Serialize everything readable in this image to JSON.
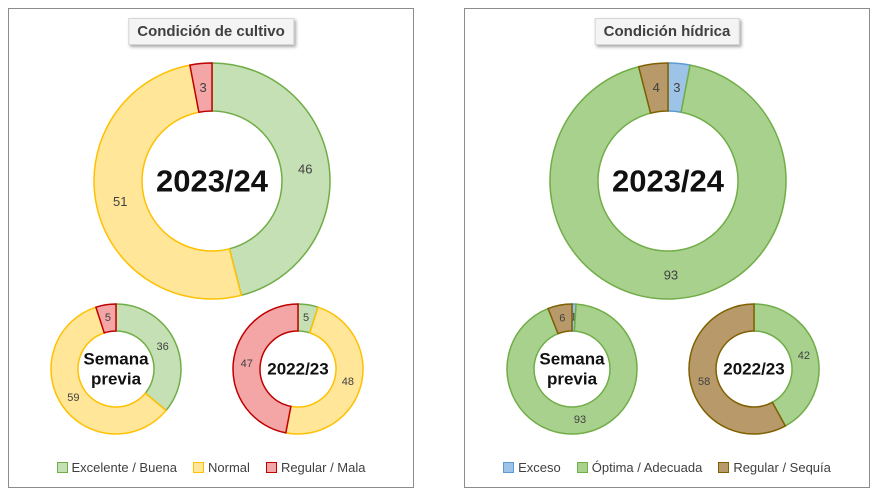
{
  "panels": [
    {
      "title": "Condición de cultivo",
      "legend": [
        {
          "label": "Excelente / Buena",
          "fill": "#c5e0b4",
          "stroke": "#70ad47"
        },
        {
          "label": "Normal",
          "fill": "#ffe699",
          "stroke": "#ffc000"
        },
        {
          "label": "Regular / Mala",
          "fill": "#f4a6a6",
          "stroke": "#c00000"
        }
      ]
    },
    {
      "title": "Condición hídrica",
      "legend": [
        {
          "label": "Exceso",
          "fill": "#9dc3e6",
          "stroke": "#5b9bd5"
        },
        {
          "label": "Óptima / Adecuada",
          "fill": "#a9d18e",
          "stroke": "#70ad47"
        },
        {
          "label": "Regular / Sequía",
          "fill": "#b89a6a",
          "stroke": "#7f6000"
        }
      ]
    }
  ],
  "chart_data": [
    {
      "type": "pie",
      "donut": true,
      "panel": 0,
      "center_label": [
        "2023/24"
      ],
      "categories": [
        "Excelente / Buena",
        "Normal",
        "Regular / Mala"
      ],
      "values": [
        46,
        51,
        3
      ]
    },
    {
      "type": "pie",
      "donut": true,
      "panel": 0,
      "center_label": [
        "Semana",
        "previa"
      ],
      "categories": [
        "Excelente / Buena",
        "Normal",
        "Regular / Mala"
      ],
      "values": [
        36,
        59,
        5
      ]
    },
    {
      "type": "pie",
      "donut": true,
      "panel": 0,
      "center_label": [
        "2022/23"
      ],
      "categories": [
        "Excelente / Buena",
        "Normal",
        "Regular / Mala"
      ],
      "values": [
        5,
        48,
        47
      ]
    },
    {
      "type": "pie",
      "donut": true,
      "panel": 1,
      "center_label": [
        "2023/24"
      ],
      "categories": [
        "Exceso",
        "Óptima / Adecuada",
        "Regular / Sequía"
      ],
      "values": [
        3,
        93,
        4
      ]
    },
    {
      "type": "pie",
      "donut": true,
      "panel": 1,
      "center_label": [
        "Semana",
        "previa"
      ],
      "categories": [
        "Exceso",
        "Óptima / Adecuada",
        "Regular / Sequía"
      ],
      "values": [
        1,
        93,
        6
      ]
    },
    {
      "type": "pie",
      "donut": true,
      "panel": 1,
      "center_label": [
        "2022/23"
      ],
      "categories": [
        "Exceso",
        "Óptima / Adecuada",
        "Regular / Sequía"
      ],
      "values": [
        0,
        42,
        58
      ]
    }
  ]
}
